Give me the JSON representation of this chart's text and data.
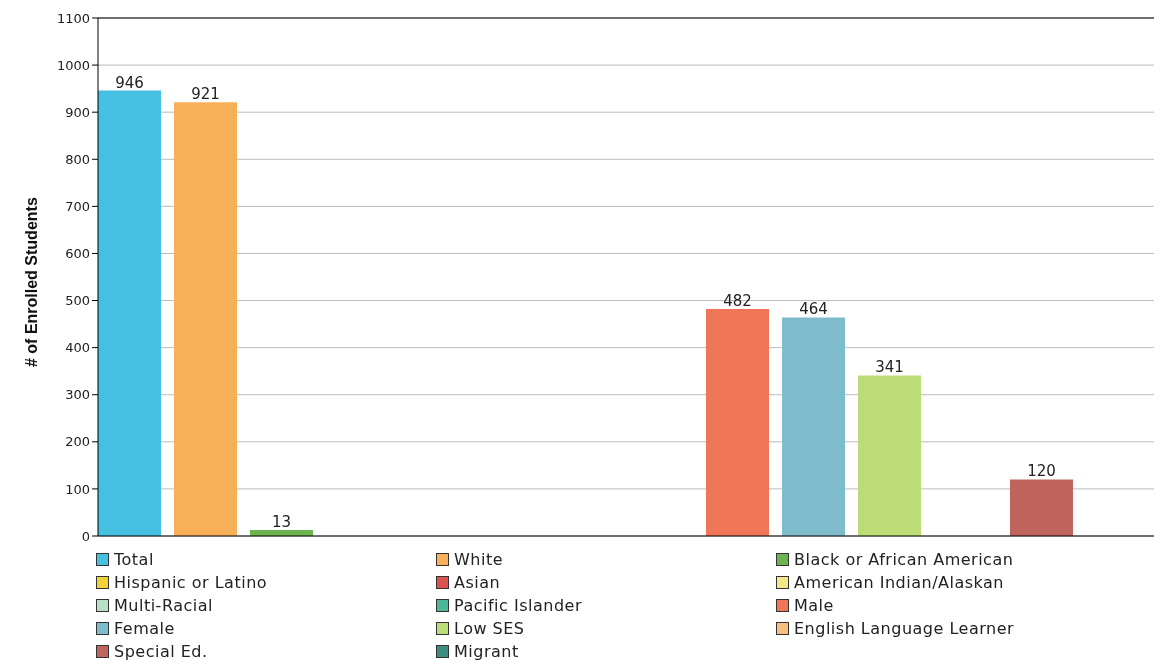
{
  "chart_data": {
    "type": "bar",
    "ylabel": "# of Enrolled Students",
    "categories": [
      null
    ],
    "series": [
      {
        "name": "Total",
        "color": "#45c0e0",
        "values": [
          946
        ],
        "value_labels": [
          "946"
        ]
      },
      {
        "name": "White",
        "color": "#f8b058",
        "values": [
          921
        ],
        "value_labels": [
          "921"
        ]
      },
      {
        "name": "Black or African American",
        "color": "#6cb450",
        "values": [
          13
        ],
        "value_labels": [
          "13"
        ]
      },
      {
        "name": "Hispanic or Latino",
        "color": "#f2d23a",
        "values": [
          0
        ],
        "value_labels": [
          null
        ]
      },
      {
        "name": "Asian",
        "color": "#d9534f",
        "values": [
          0
        ],
        "value_labels": [
          null
        ]
      },
      {
        "name": "American Indian/Alaskan",
        "color": "#f5e68a",
        "values": [
          0
        ],
        "value_labels": [
          null
        ]
      },
      {
        "name": "Multi-Racial",
        "color": "#b8e0c8",
        "values": [
          0
        ],
        "value_labels": [
          null
        ]
      },
      {
        "name": "Pacific Islander",
        "color": "#4cb89a",
        "values": [
          0
        ],
        "value_labels": [
          null
        ]
      },
      {
        "name": "Male",
        "color": "#ef7758",
        "values": [
          482
        ],
        "value_labels": [
          "482"
        ]
      },
      {
        "name": "Female",
        "color": "#7fbccb",
        "values": [
          464
        ],
        "value_labels": [
          "464"
        ]
      },
      {
        "name": "Low SES",
        "color": "#bcdc78",
        "values": [
          341
        ],
        "value_labels": [
          "341"
        ]
      },
      {
        "name": "English Language Learner",
        "color": "#f7c080",
        "values": [
          0
        ],
        "value_labels": [
          null
        ]
      },
      {
        "name": "Special Ed.",
        "color": "#c0645e",
        "values": [
          120
        ],
        "value_labels": [
          "120"
        ]
      },
      {
        "name": "Migrant",
        "color": "#3f8c80",
        "values": [
          0
        ],
        "value_labels": [
          null
        ]
      }
    ],
    "ylim": [
      0,
      1100
    ],
    "yticks": [
      0,
      100,
      200,
      300,
      400,
      500,
      600,
      700,
      800,
      900,
      1000,
      1100
    ],
    "grid": "y",
    "legend": "bottom",
    "tick_labels": "y"
  }
}
